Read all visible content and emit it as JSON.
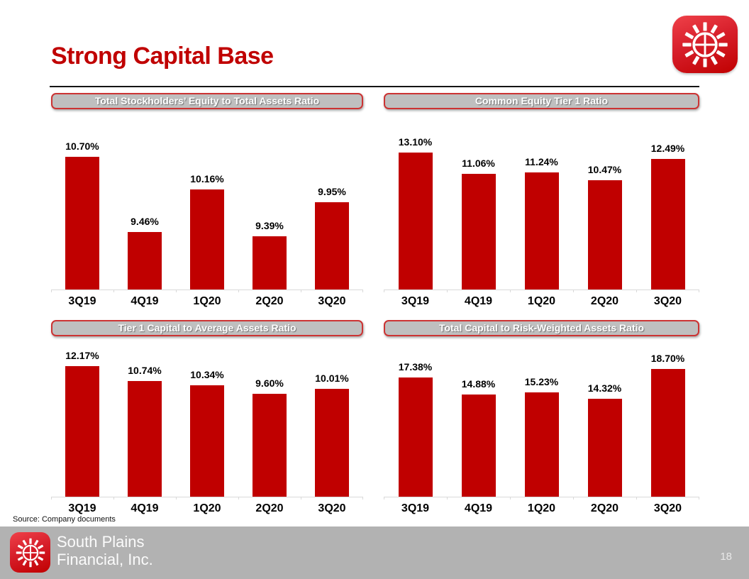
{
  "slide": {
    "title": "Strong Capital Base",
    "source_note": "Source: Company documents",
    "page_number": "18",
    "footer": {
      "company_line1": "South Plains",
      "company_line2": "Financial, Inc.",
      "logo": "windmill-icon"
    },
    "header_logo": "windmill-icon",
    "colors": {
      "bar_red": "#C00000",
      "title_red": "#C00000",
      "header_fill": "#BFBFBF",
      "header_border": "#CC3333",
      "footer_gray": "#B2B2B2",
      "axis_gray": "#D9D9D9"
    }
  },
  "chart_data": [
    {
      "type": "bar",
      "title": "Total Stockholders’ Equity to Total Assets Ratio",
      "categories": [
        "3Q19",
        "4Q19",
        "1Q20",
        "2Q20",
        "3Q20"
      ],
      "values": [
        10.7,
        9.46,
        10.16,
        9.39,
        9.95
      ],
      "value_labels": [
        "10.70%",
        "9.46%",
        "10.16%",
        "9.39%",
        "9.95%"
      ],
      "ylim": [
        8.5,
        11.0
      ],
      "xlabel": "",
      "ylabel": "",
      "grid": false,
      "legend": "none",
      "bar_color": "#C00000"
    },
    {
      "type": "bar",
      "title": "Common Equity Tier 1 Ratio",
      "categories": [
        "3Q19",
        "4Q19",
        "1Q20",
        "2Q20",
        "3Q20"
      ],
      "values": [
        13.1,
        11.06,
        11.24,
        10.47,
        12.49
      ],
      "value_labels": [
        "13.10%",
        "11.06%",
        "11.24%",
        "10.47%",
        "12.49%"
      ],
      "ylim": [
        0,
        14
      ],
      "xlabel": "",
      "ylabel": "",
      "grid": false,
      "legend": "none",
      "bar_color": "#C00000"
    },
    {
      "type": "bar",
      "title": "Tier 1 Capital to Average Assets Ratio",
      "categories": [
        "3Q19",
        "4Q19",
        "1Q20",
        "2Q20",
        "3Q20"
      ],
      "values": [
        12.17,
        10.74,
        10.34,
        9.6,
        10.01
      ],
      "value_labels": [
        "12.17%",
        "10.74%",
        "10.34%",
        "9.60%",
        "10.01%"
      ],
      "ylim": [
        0,
        13
      ],
      "xlabel": "",
      "ylabel": "",
      "grid": false,
      "legend": "none",
      "bar_color": "#C00000"
    },
    {
      "type": "bar",
      "title": "Total Capital to Risk-Weighted Assets Ratio",
      "categories": [
        "3Q19",
        "4Q19",
        "1Q20",
        "2Q20",
        "3Q20"
      ],
      "values": [
        17.38,
        14.88,
        15.23,
        14.32,
        18.7
      ],
      "value_labels": [
        "17.38%",
        "14.88%",
        "15.23%",
        "14.32%",
        "18.70%"
      ],
      "ylim": [
        0,
        20
      ],
      "xlabel": "",
      "ylabel": "",
      "grid": false,
      "legend": "none",
      "bar_color": "#C00000"
    }
  ]
}
